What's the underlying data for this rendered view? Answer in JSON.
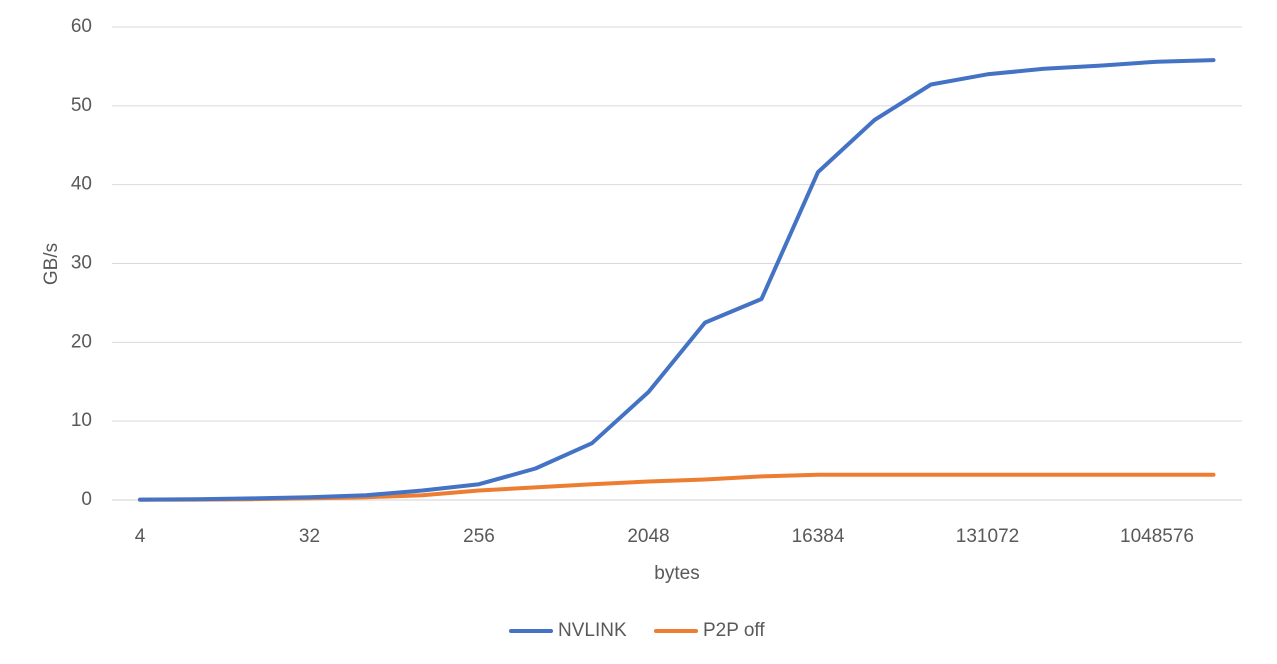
{
  "chart_data": {
    "type": "line",
    "title": "",
    "xlabel": "bytes",
    "ylabel": "GB/s",
    "ylim": [
      0,
      60
    ],
    "yticks": [
      "0",
      "10",
      "20",
      "30",
      "40",
      "50",
      "60"
    ],
    "x": [
      "4",
      "8",
      "16",
      "32",
      "64",
      "128",
      "256",
      "512",
      "1024",
      "2048",
      "4096",
      "8192",
      "16384",
      "32768",
      "65536",
      "131072",
      "262144",
      "524288",
      "1048576",
      "2097152"
    ],
    "xtick_labels": [
      "4",
      "32",
      "256",
      "2048",
      "16384",
      "131072",
      "1048576"
    ],
    "grid": "horizontal",
    "legend_position": "bottom",
    "series": [
      {
        "name": "NVLINK",
        "color": "#4472C4",
        "values": [
          0.05,
          0.1,
          0.2,
          0.35,
          0.6,
          1.2,
          2.0,
          4.0,
          7.2,
          13.7,
          22.5,
          25.5,
          41.6,
          48.2,
          52.7,
          54.0,
          54.7,
          55.1,
          55.6,
          55.8
        ]
      },
      {
        "name": "P2P off",
        "color": "#ED7D31",
        "values": [
          0.02,
          0.05,
          0.1,
          0.2,
          0.35,
          0.6,
          1.2,
          1.6,
          2.0,
          2.35,
          2.6,
          3.0,
          3.2,
          3.2,
          3.2,
          3.2,
          3.2,
          3.2,
          3.2,
          3.2
        ]
      }
    ]
  }
}
